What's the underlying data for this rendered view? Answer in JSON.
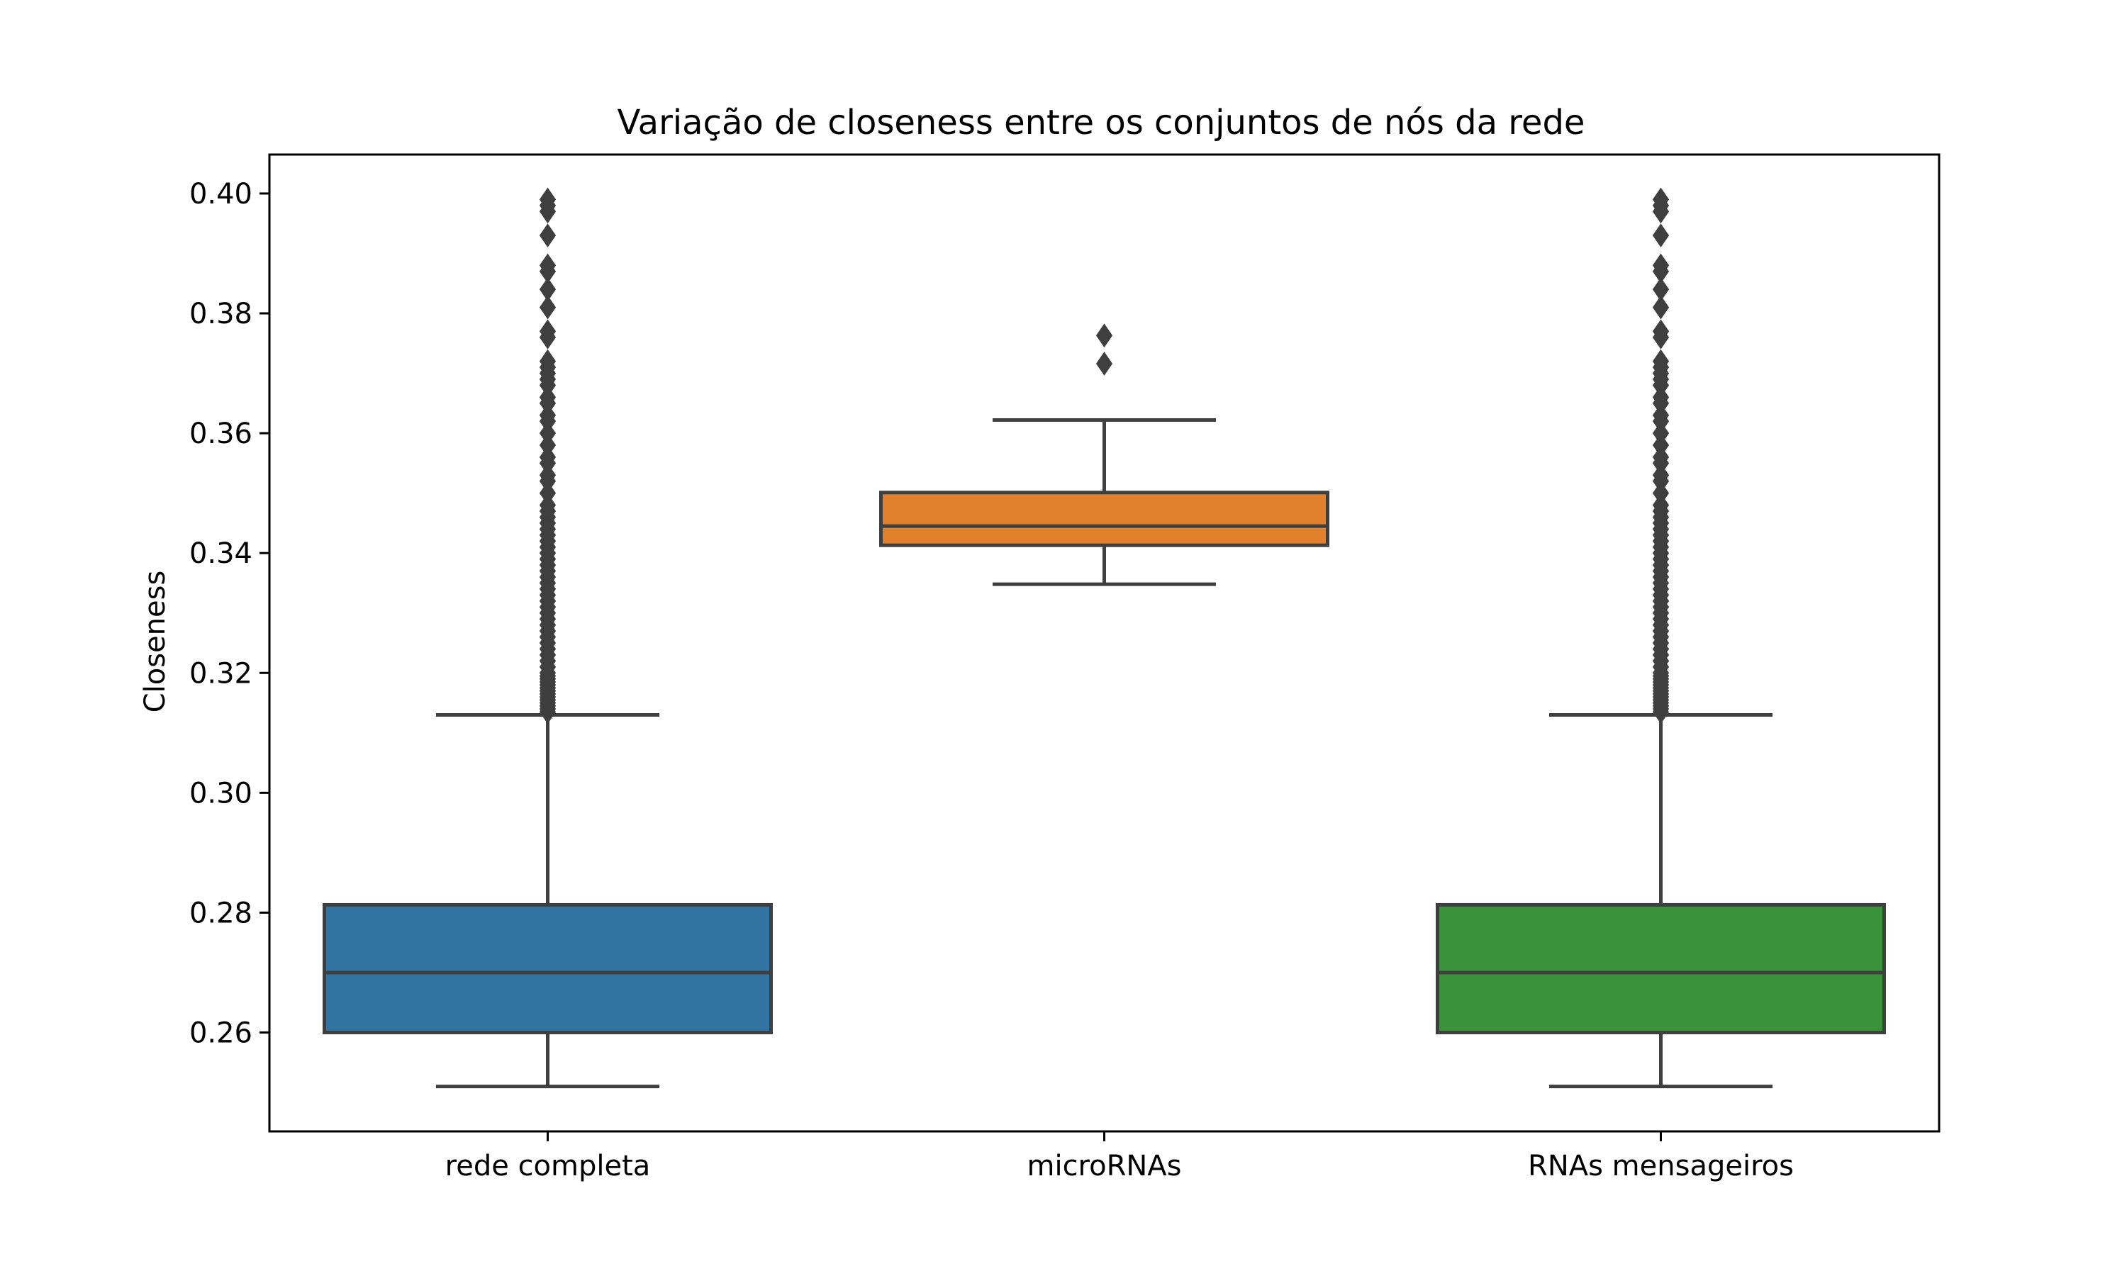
{
  "chart_data": {
    "type": "box",
    "title": "Variação de closeness entre os conjuntos de nós da rede",
    "xlabel": "",
    "ylabel": "Closeness",
    "ylim": [
      0.2435,
      0.4065
    ],
    "yticks": [
      0.26,
      0.28,
      0.3,
      0.32,
      0.34,
      0.36,
      0.38,
      0.4
    ],
    "ytick_labels": [
      "0.26",
      "0.28",
      "0.30",
      "0.32",
      "0.34",
      "0.36",
      "0.38",
      "0.40"
    ],
    "categories": [
      "rede completa",
      "microRNAs",
      "RNAs mensageiros"
    ],
    "grid": false,
    "series": [
      {
        "category": "rede completa",
        "color": "#3274a1",
        "whisker_low": 0.251,
        "q1": 0.26,
        "median": 0.27,
        "q3": 0.2813,
        "whisker_high": 0.313,
        "outliers": [
          0.3135,
          0.314,
          0.3145,
          0.315,
          0.3155,
          0.316,
          0.3165,
          0.317,
          0.3175,
          0.318,
          0.3185,
          0.319,
          0.3195,
          0.32,
          0.321,
          0.322,
          0.323,
          0.324,
          0.325,
          0.326,
          0.327,
          0.328,
          0.329,
          0.33,
          0.331,
          0.332,
          0.333,
          0.334,
          0.335,
          0.336,
          0.337,
          0.338,
          0.339,
          0.34,
          0.341,
          0.342,
          0.343,
          0.344,
          0.345,
          0.346,
          0.347,
          0.348,
          0.35,
          0.352,
          0.353,
          0.355,
          0.356,
          0.358,
          0.36,
          0.362,
          0.363,
          0.365,
          0.366,
          0.368,
          0.369,
          0.37,
          0.371,
          0.372,
          0.376,
          0.377,
          0.381,
          0.384,
          0.387,
          0.388,
          0.393,
          0.397,
          0.398,
          0.399
        ]
      },
      {
        "category": "microRNAs",
        "color": "#e1812c",
        "whisker_low": 0.3348,
        "q1": 0.3413,
        "median": 0.3445,
        "q3": 0.3501,
        "whisker_high": 0.3622,
        "outliers": [
          0.3716,
          0.3763
        ]
      },
      {
        "category": "RNAs mensageiros",
        "color": "#3a923a",
        "whisker_low": 0.251,
        "q1": 0.26,
        "median": 0.27,
        "q3": 0.2813,
        "whisker_high": 0.313,
        "outliers": [
          0.3135,
          0.314,
          0.3145,
          0.315,
          0.3155,
          0.316,
          0.3165,
          0.317,
          0.3175,
          0.318,
          0.3185,
          0.319,
          0.3195,
          0.32,
          0.321,
          0.322,
          0.323,
          0.324,
          0.325,
          0.326,
          0.327,
          0.328,
          0.329,
          0.33,
          0.331,
          0.332,
          0.333,
          0.334,
          0.335,
          0.336,
          0.337,
          0.338,
          0.339,
          0.34,
          0.341,
          0.342,
          0.343,
          0.344,
          0.345,
          0.346,
          0.347,
          0.348,
          0.35,
          0.352,
          0.353,
          0.355,
          0.356,
          0.358,
          0.36,
          0.362,
          0.363,
          0.365,
          0.366,
          0.368,
          0.369,
          0.37,
          0.371,
          0.372,
          0.376,
          0.377,
          0.381,
          0.384,
          0.387,
          0.388,
          0.393,
          0.397,
          0.398,
          0.399
        ]
      }
    ],
    "colors": {
      "line": "#3f3f3f",
      "axis": "#000000",
      "background": "#ffffff"
    }
  }
}
